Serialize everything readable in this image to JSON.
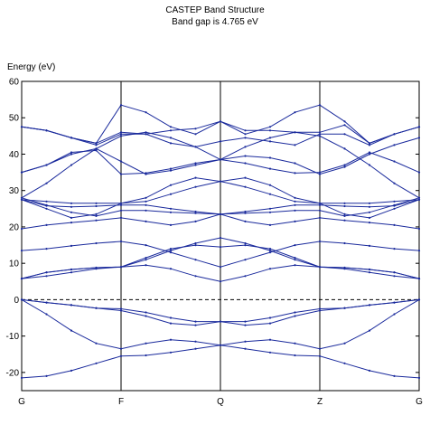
{
  "chart_data": {
    "type": "line",
    "title": "CASTEP Band Structure",
    "subtitle": "Band gap is 4.765 eV",
    "ylabel": "Energy (eV)",
    "xlabel": "",
    "ylim": [
      -25,
      60
    ],
    "yticks": [
      -20,
      -10,
      0,
      10,
      20,
      30,
      40,
      50,
      60
    ],
    "xlim": [
      0,
      4
    ],
    "kpoints": [
      {
        "label": "G",
        "x": 0
      },
      {
        "label": "F",
        "x": 1
      },
      {
        "label": "Q",
        "x": 2
      },
      {
        "label": "Z",
        "x": 3
      },
      {
        "label": "G",
        "x": 4
      }
    ],
    "fermi_level": 0,
    "grid": "vertical lines at high-symmetry points",
    "legend": "none",
    "line_color": "#1a2a9c",
    "bands": [
      {
        "x": [
          0,
          0.25,
          0.5,
          0.75,
          1,
          1.25,
          1.5,
          1.75,
          2,
          2.25,
          2.5,
          2.75,
          3,
          3.25,
          3.5,
          3.75,
          4
        ],
        "y": [
          -21.5,
          -21,
          -19.5,
          -17.5,
          -15.5,
          -15.3,
          -14.5,
          -13.5,
          -12.5,
          -13.5,
          -14.5,
          -15.3,
          -15.5,
          -17.5,
          -19.5,
          -21,
          -21.5
        ]
      },
      {
        "x": [
          0,
          0.25,
          0.5,
          0.75,
          1,
          1.25,
          1.5,
          1.75,
          2,
          2.25,
          2.5,
          2.75,
          3,
          3.25,
          3.5,
          3.75,
          4
        ],
        "y": [
          0,
          -4,
          -8.5,
          -12,
          -13.5,
          -12,
          -11,
          -11.5,
          -12.5,
          -11.5,
          -11,
          -12,
          -13.5,
          -12,
          -8.5,
          -4,
          0
        ]
      },
      {
        "x": [
          0,
          0.25,
          0.5,
          0.75,
          1,
          1.25,
          1.5,
          1.75,
          2,
          2.25,
          2.5,
          2.75,
          3,
          3.25,
          3.5,
          3.75,
          4
        ],
        "y": [
          0,
          -0.8,
          -1.5,
          -2.3,
          -3,
          -4.5,
          -6.5,
          -7,
          -6,
          -7,
          -6.5,
          -4.5,
          -3,
          -2.3,
          -1.5,
          -0.8,
          0
        ]
      },
      {
        "x": [
          0,
          0.25,
          0.5,
          0.75,
          1,
          1.25,
          1.5,
          1.75,
          2,
          2.25,
          2.5,
          2.75,
          3,
          3.25,
          3.5,
          3.75,
          4
        ],
        "y": [
          0,
          -0.8,
          -1.5,
          -2.3,
          -2.5,
          -3.5,
          -5,
          -6,
          -6,
          -6,
          -5,
          -3.5,
          -2.5,
          -2.3,
          -1.5,
          -0.8,
          0
        ]
      },
      {
        "x": [
          0,
          0.25,
          0.5,
          0.75,
          1,
          1.25,
          1.5,
          1.75,
          2,
          2.25,
          2.5,
          2.75,
          3,
          3.25,
          3.5,
          3.75,
          4
        ],
        "y": [
          5.8,
          7.5,
          8.3,
          8.8,
          9,
          11,
          13.5,
          15.5,
          17,
          15.5,
          13.5,
          11,
          9,
          8.8,
          8.3,
          7.5,
          5.8
        ]
      },
      {
        "x": [
          0,
          0.25,
          0.5,
          0.75,
          1,
          1.25,
          1.5,
          1.75,
          2,
          2.25,
          2.5,
          2.75,
          3,
          3.25,
          3.5,
          3.75,
          4
        ],
        "y": [
          5.8,
          7.5,
          8.3,
          8.8,
          9,
          9.5,
          8.5,
          6.5,
          5,
          6.5,
          8.5,
          9.5,
          9,
          8.8,
          8.3,
          7.5,
          5.8
        ]
      },
      {
        "x": [
          0,
          0.25,
          0.5,
          0.75,
          1,
          1.25,
          1.5,
          1.75,
          2,
          2.25,
          2.5,
          2.75,
          3,
          3.25,
          3.5,
          3.75,
          4
        ],
        "y": [
          5.8,
          6.5,
          7.5,
          8.5,
          9,
          11.5,
          14,
          15,
          14.5,
          15,
          14,
          11.5,
          9,
          8.5,
          7.5,
          6.5,
          5.8
        ]
      },
      {
        "x": [
          0,
          0.25,
          0.5,
          0.75,
          1,
          1.25,
          1.5,
          1.75,
          2,
          2.25,
          2.5,
          2.75,
          3,
          3.25,
          3.5,
          3.75,
          4
        ],
        "y": [
          13.5,
          14,
          14.8,
          15.5,
          16,
          15,
          13,
          11,
          9,
          11,
          13,
          15,
          16,
          15.5,
          14.8,
          14,
          13.5
        ]
      },
      {
        "x": [
          0,
          0.25,
          0.5,
          0.75,
          1,
          1.25,
          1.5,
          1.75,
          2,
          2.25,
          2.5,
          2.75,
          3,
          3.25,
          3.5,
          3.75,
          4
        ],
        "y": [
          19.5,
          20.5,
          21.2,
          21.8,
          22.5,
          21.5,
          20.5,
          21.5,
          23.5,
          21.5,
          20.5,
          21.5,
          22.5,
          21.8,
          21.2,
          20.5,
          19.5
        ]
      },
      {
        "x": [
          0,
          0.25,
          0.5,
          0.75,
          1,
          1.25,
          1.5,
          1.75,
          2,
          2.25,
          2.5,
          2.75,
          3,
          3.25,
          3.5,
          3.75,
          4
        ],
        "y": [
          28,
          26,
          24,
          23,
          24.5,
          24.5,
          24,
          23.8,
          23.5,
          23.8,
          24,
          24.5,
          24.5,
          23,
          24,
          26,
          28
        ]
      },
      {
        "x": [
          0,
          0.25,
          0.5,
          0.75,
          1,
          1.25,
          1.5,
          1.75,
          2,
          2.25,
          2.5,
          2.75,
          3,
          3.25,
          3.5,
          3.75,
          4
        ],
        "y": [
          27.5,
          25.8,
          25.5,
          25.7,
          26,
          26,
          25,
          24.2,
          23.5,
          24.2,
          25,
          26,
          26,
          25.7,
          25.5,
          25.8,
          27.5
        ]
      },
      {
        "x": [
          0,
          0.25,
          0.5,
          0.75,
          1,
          1.25,
          1.5,
          1.75,
          2,
          2.25,
          2.5,
          2.75,
          3,
          3.25,
          3.5,
          3.75,
          4
        ],
        "y": [
          27.5,
          25,
          22.5,
          23.5,
          26.5,
          28,
          31.5,
          33.5,
          32.5,
          33.5,
          31.5,
          28,
          26.5,
          23.5,
          22.5,
          25,
          27.5
        ]
      },
      {
        "x": [
          0,
          0.25,
          0.5,
          0.75,
          1,
          1.25,
          1.5,
          1.75,
          2,
          2.25,
          2.5,
          2.75,
          3,
          3.25,
          3.5,
          3.75,
          4
        ],
        "y": [
          27.5,
          27,
          26.5,
          26.5,
          26.5,
          27,
          29,
          31,
          32.5,
          31,
          29,
          27,
          26.5,
          26.5,
          26.5,
          27,
          27.5
        ]
      },
      {
        "x": [
          0,
          0.25,
          0.5,
          0.75,
          1,
          1.25,
          1.5,
          1.75,
          2,
          2.25,
          2.5,
          2.75,
          3,
          3.25,
          3.5,
          3.75,
          4
        ],
        "y": [
          35,
          37,
          40,
          41.5,
          38,
          34.5,
          35.5,
          37,
          38.5,
          39.5,
          39,
          37.5,
          34.5,
          36.5,
          40,
          42.5,
          44.5
        ]
      },
      {
        "x": [
          0,
          0.25,
          0.5,
          0.75,
          1,
          1.25,
          1.5,
          1.75,
          2,
          2.25,
          2.5,
          2.75,
          3,
          3.25,
          3.5,
          3.75,
          4
        ],
        "y": [
          35,
          37,
          40.5,
          41,
          34.5,
          34.8,
          36,
          37.5,
          38.5,
          37.5,
          36,
          34.8,
          35,
          37,
          40.5,
          38,
          35
        ]
      },
      {
        "x": [
          0,
          0.25,
          0.5,
          0.75,
          1,
          1.25,
          1.5,
          1.75,
          2,
          2.25,
          2.5,
          2.75,
          3,
          3.25,
          3.5,
          3.75,
          4
        ],
        "y": [
          28,
          32,
          37,
          41.5,
          45,
          46,
          44.5,
          42,
          38.5,
          42,
          44.5,
          46,
          45,
          41.5,
          37,
          32,
          28
        ]
      },
      {
        "x": [
          0,
          0.25,
          0.5,
          0.75,
          1,
          1.25,
          1.5,
          1.75,
          2,
          2.25,
          2.5,
          2.75,
          3,
          3.25,
          3.5,
          3.75,
          4
        ],
        "y": [
          47.5,
          46.5,
          44.5,
          42.5,
          45.5,
          45.5,
          43,
          42,
          43.5,
          44.5,
          43.5,
          42.5,
          45.5,
          45.5,
          42.5,
          45.5,
          47.5
        ]
      },
      {
        "x": [
          0,
          0.25,
          0.5,
          0.75,
          1,
          1.25,
          1.5,
          1.75,
          2,
          2.25,
          2.5,
          2.75,
          3,
          3.25,
          3.5,
          3.75,
          4
        ],
        "y": [
          47.5,
          46.5,
          44.5,
          43,
          53.5,
          51.5,
          47.5,
          45.5,
          49,
          45.5,
          47.5,
          51.5,
          53.5,
          49,
          43,
          45.5,
          47.5
        ]
      },
      {
        "x": [
          0,
          0.25,
          0.5,
          0.75,
          1,
          1.25,
          1.5,
          1.75,
          2,
          2.25,
          2.5,
          2.75,
          3,
          3.25,
          3.5,
          3.75,
          4
        ],
        "y": [
          47.5,
          46.5,
          44.5,
          43,
          46,
          45.5,
          46.5,
          47,
          49,
          46.5,
          46.5,
          46,
          46,
          48,
          43,
          45.5,
          47.5
        ]
      }
    ]
  }
}
